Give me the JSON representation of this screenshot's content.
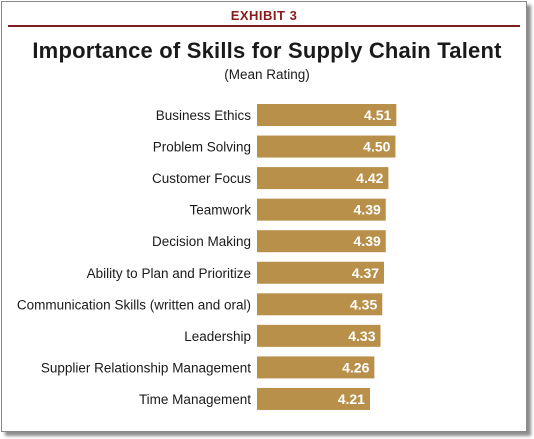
{
  "exhibit": "EXHIBIT 3",
  "chart_data": {
    "type": "bar",
    "orientation": "horizontal",
    "title": "Importance of Skills for Supply Chain Talent",
    "subtitle": "(Mean Rating)",
    "categories": [
      "Business Ethics",
      "Problem Solving",
      "Customer Focus",
      "Teamwork",
      "Decision Making",
      "Ability to Plan and Prioritize",
      "Communication Skills (written and oral)",
      "Leadership",
      "Supplier Relationship Management",
      "Time Management"
    ],
    "values": [
      4.51,
      4.5,
      4.42,
      4.39,
      4.39,
      4.37,
      4.35,
      4.33,
      4.26,
      4.21
    ],
    "value_labels": [
      "4.51",
      "4.50",
      "4.42",
      "4.39",
      "4.39",
      "4.37",
      "4.35",
      "4.33",
      "4.26",
      "4.21"
    ],
    "bar_color": "#b9904a",
    "grid": false,
    "legend": "none"
  }
}
